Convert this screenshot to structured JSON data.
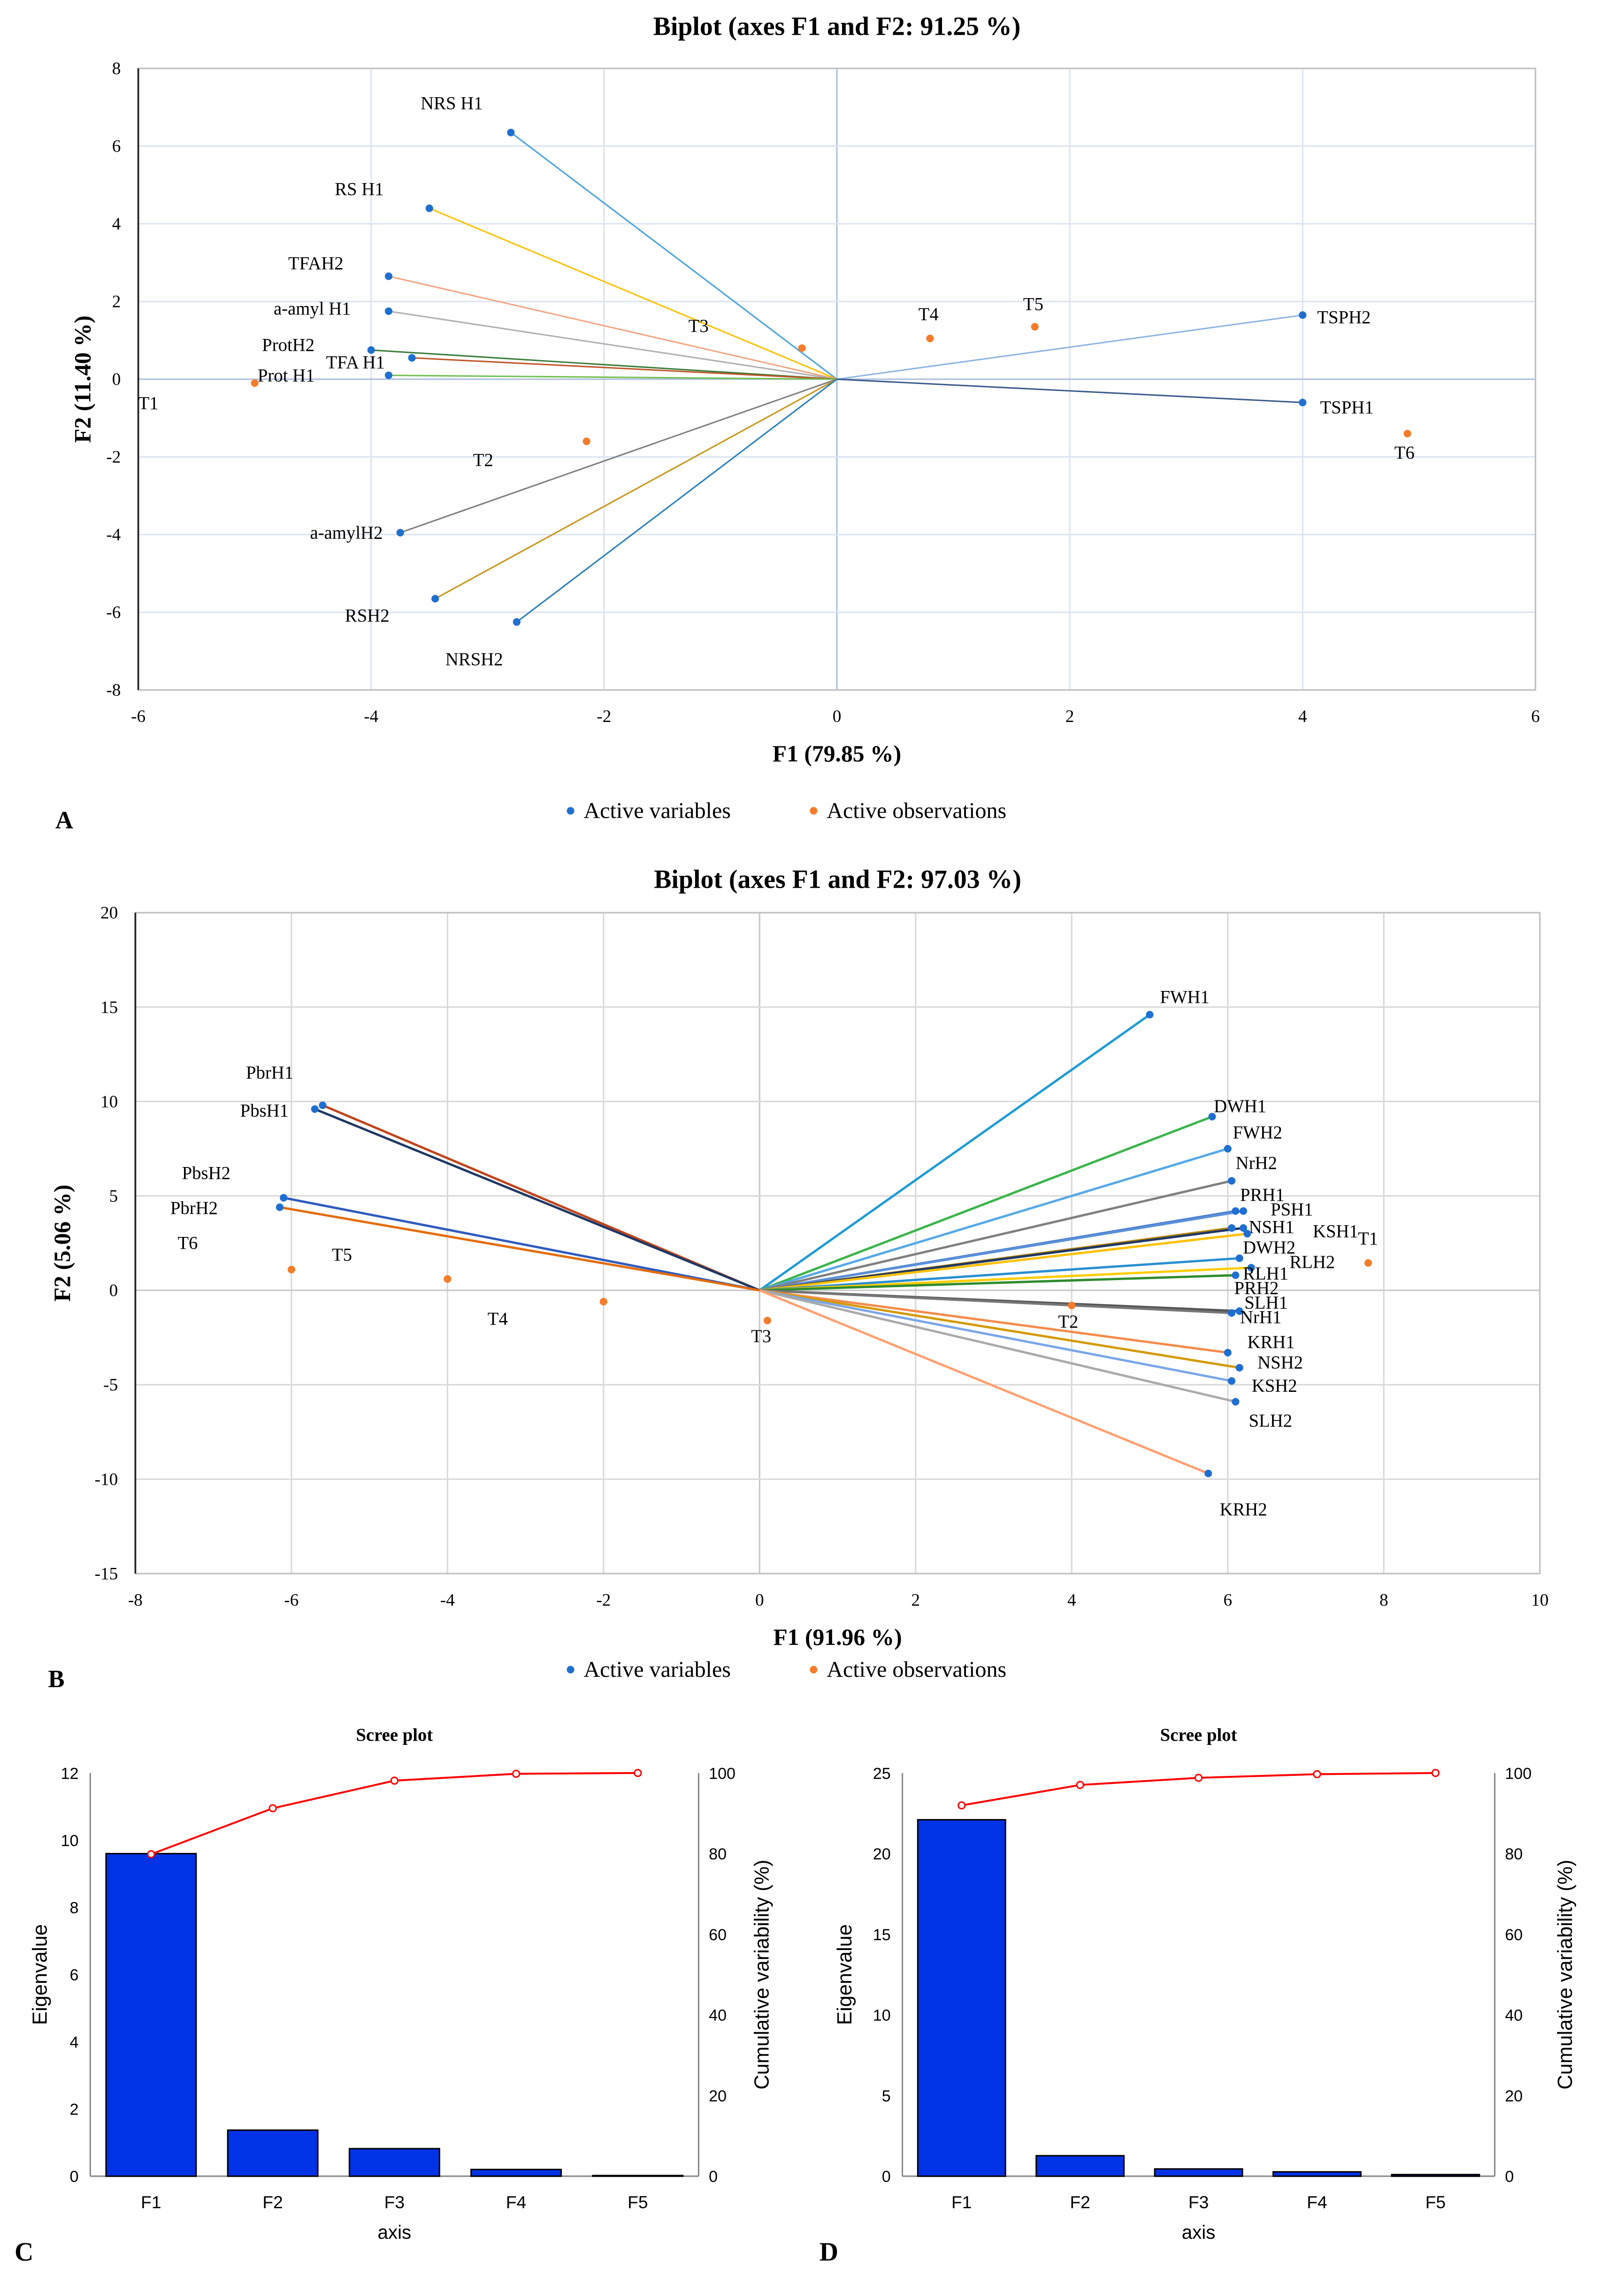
{
  "panel_letters": [
    "A",
    "B",
    "C",
    "D"
  ],
  "chart_data": [
    {
      "type": "scatter",
      "subtype": "biplot",
      "title": "Biplot (axes F1 and F2: 91.25 %)",
      "xlabel": "F1 (79.85 %)",
      "ylabel": "F2 (11.40 %)",
      "xlim": [
        -6,
        6
      ],
      "ylim": [
        -8,
        8
      ],
      "xticks": [
        -6,
        -4,
        -2,
        0,
        2,
        4,
        6
      ],
      "yticks": [
        -8,
        -6,
        -4,
        -2,
        0,
        2,
        4,
        6,
        8
      ],
      "grid": true,
      "legend": {
        "placement": "bottom",
        "entries": [
          "Active variables",
          "Active observations"
        ]
      },
      "colors": {
        "variables": "#1f6fd1",
        "observations": "#f47c2a"
      },
      "variables": [
        {
          "name": "NRS H1",
          "x": -2.8,
          "y": 6.35,
          "color": "#4aa3df"
        },
        {
          "name": "RS H1",
          "x": -3.5,
          "y": 4.4,
          "color": "#ffc000"
        },
        {
          "name": "TFAH2",
          "x": -3.85,
          "y": 2.65,
          "color": "#f4a582"
        },
        {
          "name": "a-amyl H1",
          "x": -3.85,
          "y": 1.75,
          "color": "#b0b0b0"
        },
        {
          "name": "ProtH2",
          "x": -4.0,
          "y": 0.75,
          "color": "#3a7d3a"
        },
        {
          "name": "TFA H1",
          "x": -3.65,
          "y": 0.55,
          "color": "#c0562a"
        },
        {
          "name": "Prot H1",
          "x": -3.85,
          "y": 0.1,
          "color": "#70c050"
        },
        {
          "name": "a-amylH2",
          "x": -3.75,
          "y": -3.95,
          "color": "#808080"
        },
        {
          "name": "RSH2",
          "x": -3.45,
          "y": -5.65,
          "color": "#c8961a"
        },
        {
          "name": "NRSH2",
          "x": -2.75,
          "y": -6.25,
          "color": "#2a7fc0"
        },
        {
          "name": "TSPH2",
          "x": 4.0,
          "y": 1.65,
          "color": "#8fb4e3"
        },
        {
          "name": "TSPH1",
          "x": 4.0,
          "y": -0.6,
          "color": "#3b5a8a"
        }
      ],
      "observations": [
        {
          "name": "T1",
          "x": -5.0,
          "y": -0.1
        },
        {
          "name": "T2",
          "x": -2.15,
          "y": -1.6
        },
        {
          "name": "T3",
          "x": -0.3,
          "y": 0.8
        },
        {
          "name": "T4",
          "x": 0.8,
          "y": 1.05
        },
        {
          "name": "T5",
          "x": 1.7,
          "y": 1.35
        },
        {
          "name": "T6",
          "x": 4.9,
          "y": -1.4
        }
      ]
    },
    {
      "type": "scatter",
      "subtype": "biplot",
      "title": "Biplot (axes F1 and F2: 97.03 %)",
      "xlabel": "F1 (91.96 %)",
      "ylabel": "F2 (5.06 %)",
      "xlim": [
        -8,
        10
      ],
      "ylim": [
        -15,
        20
      ],
      "xticks": [
        -8,
        -6,
        -4,
        -2,
        0,
        2,
        4,
        6,
        8,
        10
      ],
      "yticks": [
        -15,
        -10,
        -5,
        0,
        5,
        10,
        15,
        20
      ],
      "grid": true,
      "legend": {
        "placement": "bottom",
        "entries": [
          "Active variables",
          "Active observations"
        ]
      },
      "colors": {
        "variables": "#1f6fd1",
        "observations": "#f47c2a"
      },
      "variables": [
        {
          "name": "FWH1",
          "x": 5.0,
          "y": 14.6,
          "color": "#1f9bd7"
        },
        {
          "name": "DWH1",
          "x": 5.8,
          "y": 9.2,
          "color": "#3cb44b"
        },
        {
          "name": "FWH2",
          "x": 6.0,
          "y": 7.5,
          "color": "#56a9e8"
        },
        {
          "name": "NrH2",
          "x": 6.05,
          "y": 5.8,
          "color": "#808080"
        },
        {
          "name": "PRH1",
          "x": 6.1,
          "y": 4.2,
          "color": "#4a7fd0"
        },
        {
          "name": "PSH1",
          "x": 6.2,
          "y": 4.2,
          "color": "#5b8fd8"
        },
        {
          "name": "NSH1",
          "x": 6.05,
          "y": 3.3,
          "color": "#b8860b"
        },
        {
          "name": "KSH1",
          "x": 6.2,
          "y": 3.3,
          "color": "#1f3864"
        },
        {
          "name": "DWH2",
          "x": 6.25,
          "y": 3.0,
          "color": "#ffc000"
        },
        {
          "name": "RLH2",
          "x": 6.15,
          "y": 1.7,
          "color": "#2a8fd0"
        },
        {
          "name": "RLH1",
          "x": 6.3,
          "y": 1.2,
          "color": "#ffcc00"
        },
        {
          "name": "PRH2",
          "x": 6.1,
          "y": 0.8,
          "color": "#2e8b2e"
        },
        {
          "name": "SLH1",
          "x": 6.15,
          "y": -1.1,
          "color": "#555555"
        },
        {
          "name": "NrH1",
          "x": 6.05,
          "y": -1.2,
          "color": "#777777"
        },
        {
          "name": "KRH1",
          "x": 6.0,
          "y": -3.3,
          "color": "#f58b4c"
        },
        {
          "name": "NSH2",
          "x": 6.15,
          "y": -4.1,
          "color": "#d49a00"
        },
        {
          "name": "KSH2",
          "x": 6.05,
          "y": -4.8,
          "color": "#7aa6e8"
        },
        {
          "name": "SLH2",
          "x": 6.1,
          "y": -5.9,
          "color": "#aaaaaa"
        },
        {
          "name": "KRH2",
          "x": 5.75,
          "y": -9.7,
          "color": "#ffa070"
        },
        {
          "name": "PbrH1",
          "x": -5.6,
          "y": 9.8,
          "color": "#c0441b"
        },
        {
          "name": "PbsH1",
          "x": -5.7,
          "y": 9.6,
          "color": "#1f3864"
        },
        {
          "name": "PbsH2",
          "x": -6.1,
          "y": 4.9,
          "color": "#2f5bbf"
        },
        {
          "name": "PbrH2",
          "x": -6.15,
          "y": 4.4,
          "color": "#e46c0a"
        }
      ],
      "observations": [
        {
          "name": "T1",
          "x": 7.8,
          "y": 1.45
        },
        {
          "name": "T2",
          "x": 4.0,
          "y": -0.8
        },
        {
          "name": "T3",
          "x": 0.1,
          "y": -1.6
        },
        {
          "name": "T4",
          "x": -2.0,
          "y": -0.6
        },
        {
          "name": "T5",
          "x": -4.0,
          "y": 0.6
        },
        {
          "name": "T6",
          "x": -6.0,
          "y": 1.1
        }
      ]
    },
    {
      "type": "bar",
      "subtype": "scree",
      "title": "Scree plot",
      "xlabel": "axis",
      "ylabel": "Eigenvalue",
      "y2label": "Cumulative variability (%)",
      "categories": [
        "F1",
        "F2",
        "F3",
        "F4",
        "F5"
      ],
      "values": [
        9.6,
        1.37,
        0.82,
        0.2,
        0.02
      ],
      "cumulative": [
        79.85,
        91.25,
        98.1,
        99.8,
        100
      ],
      "ylim": [
        0,
        12
      ],
      "yticks": [
        0,
        2,
        4,
        6,
        8,
        10,
        12
      ],
      "y2lim": [
        0,
        100
      ],
      "y2ticks": [
        0,
        20,
        40,
        60,
        80,
        100
      ],
      "colors": {
        "bar": "#0033e6",
        "line": "#ff0000"
      }
    },
    {
      "type": "bar",
      "subtype": "scree",
      "title": "Scree plot",
      "xlabel": "axis",
      "ylabel": "Eigenvalue",
      "y2label": "Cumulative variability (%)",
      "categories": [
        "F1",
        "F2",
        "F3",
        "F4",
        "F5"
      ],
      "values": [
        22.1,
        1.27,
        0.45,
        0.27,
        0.1
      ],
      "cumulative": [
        91.96,
        97.03,
        98.8,
        99.7,
        100
      ],
      "ylim": [
        0,
        25
      ],
      "yticks": [
        0,
        5,
        10,
        15,
        20,
        25
      ],
      "y2lim": [
        0,
        100
      ],
      "y2ticks": [
        0,
        20,
        40,
        60,
        80,
        100
      ],
      "colors": {
        "bar": "#0033e6",
        "line": "#ff0000"
      }
    }
  ]
}
